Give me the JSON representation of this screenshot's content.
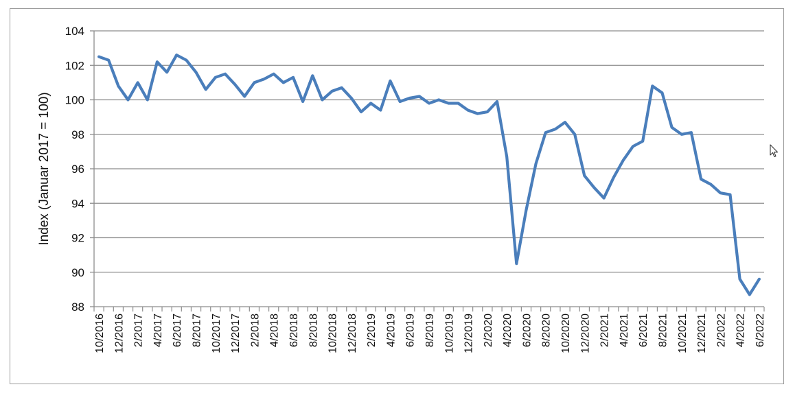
{
  "chart_data": {
    "type": "line",
    "title": "",
    "xlabel": "",
    "ylabel": "Index (Januar 2017 = 100)",
    "ylim": [
      88,
      104
    ],
    "yticks": [
      "88",
      "90",
      "92",
      "94",
      "96",
      "98",
      "100",
      "102",
      "104"
    ],
    "grid": true,
    "legend": "none",
    "line_color": "#4a7ebb",
    "x_tick_labels": [
      "10/2016",
      "12/2016",
      "2/2017",
      "4/2017",
      "6/2017",
      "8/2017",
      "10/2017",
      "12/2017",
      "2/2018",
      "4/2018",
      "6/2018",
      "8/2018",
      "10/2018",
      "12/2018",
      "2/2019",
      "4/2019",
      "6/2019",
      "8/2019",
      "10/2019",
      "12/2019",
      "2/2020",
      "4/2020",
      "6/2020",
      "8/2020",
      "10/2020",
      "12/2020",
      "2/2021",
      "4/2021",
      "6/2021",
      "8/2021",
      "10/2021",
      "12/2021",
      "2/2022",
      "4/2022",
      "6/2022"
    ],
    "series": [
      {
        "x": [
          "10/2016",
          "11/2016",
          "12/2016",
          "1/2017",
          "2/2017",
          "3/2017",
          "4/2017",
          "5/2017",
          "6/2017",
          "7/2017",
          "8/2017",
          "9/2017",
          "10/2017",
          "11/2017",
          "12/2017",
          "1/2018",
          "2/2018",
          "3/2018",
          "4/2018",
          "5/2018",
          "6/2018",
          "7/2018",
          "8/2018",
          "9/2018",
          "10/2018",
          "11/2018",
          "12/2018",
          "1/2019",
          "2/2019",
          "3/2019",
          "4/2019",
          "5/2019",
          "6/2019",
          "7/2019",
          "8/2019",
          "9/2019",
          "10/2019",
          "11/2019",
          "12/2019",
          "1/2020",
          "2/2020",
          "3/2020",
          "4/2020",
          "5/2020",
          "6/2020",
          "7/2020",
          "8/2020",
          "9/2020",
          "10/2020",
          "11/2020",
          "12/2020",
          "1/2021",
          "2/2021",
          "3/2021",
          "4/2021",
          "5/2021",
          "6/2021",
          "7/2021",
          "8/2021",
          "9/2021",
          "10/2021",
          "11/2021",
          "12/2021",
          "1/2022",
          "2/2022",
          "3/2022",
          "4/2022",
          "5/2022",
          "6/2022"
        ],
        "values": [
          102.5,
          102.3,
          100.8,
          100.0,
          101.0,
          100.0,
          102.2,
          101.6,
          102.6,
          102.3,
          101.6,
          100.6,
          101.3,
          101.5,
          100.9,
          100.2,
          101.0,
          101.2,
          101.5,
          101.0,
          101.3,
          99.9,
          101.4,
          100.0,
          100.5,
          100.7,
          100.1,
          99.3,
          99.8,
          99.4,
          101.1,
          99.9,
          100.1,
          100.2,
          99.8,
          100.0,
          99.8,
          99.8,
          99.4,
          99.2,
          99.3,
          99.9,
          96.7,
          90.5,
          93.6,
          96.3,
          98.1,
          98.3,
          98.7,
          98.0,
          95.6,
          94.9,
          94.3,
          95.5,
          96.5,
          97.3,
          97.6,
          100.8,
          100.4,
          98.4,
          98.0,
          98.1,
          95.4,
          95.1,
          94.6,
          94.5,
          89.6,
          88.7,
          89.6
        ]
      }
    ]
  }
}
